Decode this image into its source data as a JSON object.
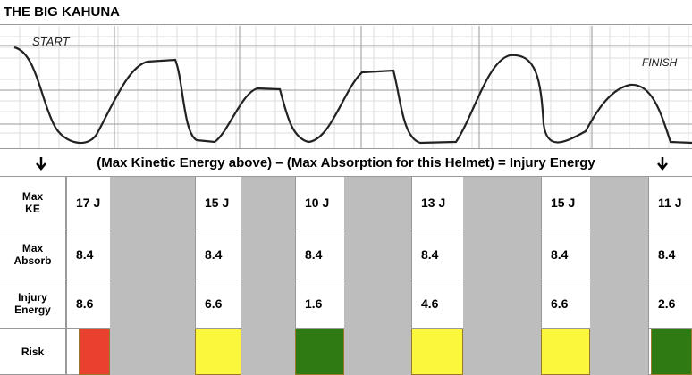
{
  "header": {
    "title": "THE BIG KAHUNA"
  },
  "sketch": {
    "start": "START",
    "finish": "FINISH"
  },
  "formula": "(Max Kinetic Energy above) – (Max Absorption for this Helmet) = Injury Energy",
  "table": {
    "row_labels": [
      "Max KE",
      "Max Absorb",
      "Injury Energy",
      "Risk"
    ],
    "rows": [
      [
        "17 J",
        "15 J",
        "10 J",
        "13 J",
        "15 J",
        "11 J"
      ],
      [
        "8.4",
        "8.4",
        "8.4",
        "8.4",
        "8.4",
        "8.4"
      ],
      [
        "8.6",
        "6.6",
        "1.6",
        "4.6",
        "6.6",
        "2.6"
      ]
    ],
    "risk_colors": [
      "#e8412f",
      "#fbf73c",
      "#2f7a12",
      "#fbf73c",
      "#fbf73c",
      "#2f7a12"
    ]
  }
}
